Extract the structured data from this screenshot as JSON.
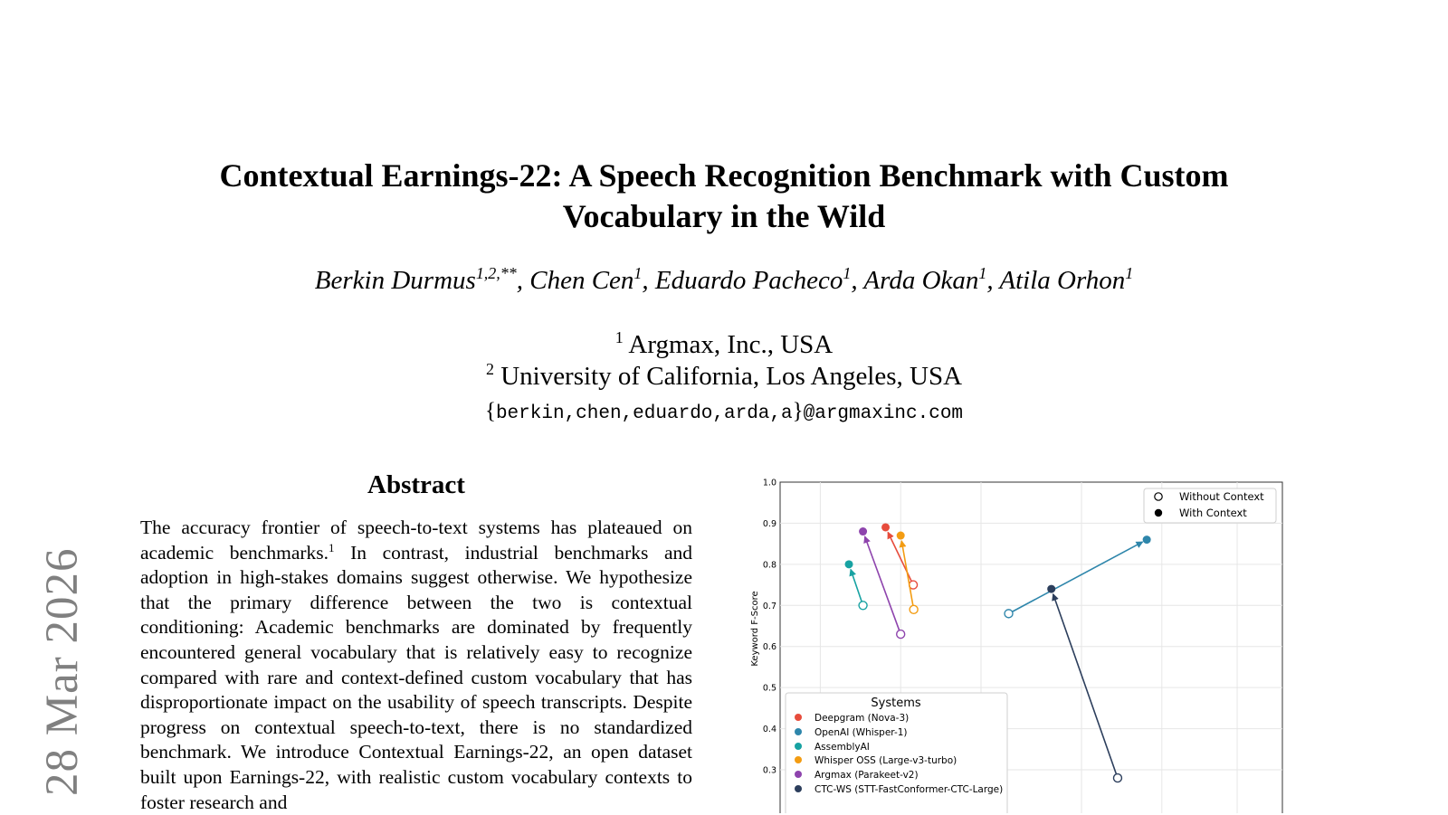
{
  "paper": {
    "title": "Contextual Earnings-22: A Speech Recognition Benchmark with Custom Vocabulary in the Wild",
    "authors": [
      {
        "name": "Berkin Durmus",
        "sup": "1,2,**"
      },
      {
        "name": "Chen Cen",
        "sup": "1"
      },
      {
        "name": "Eduardo Pacheco",
        "sup": "1"
      },
      {
        "name": "Arda Okan",
        "sup": "1"
      },
      {
        "name": "Atila Orhon",
        "sup": "1"
      }
    ],
    "affiliations": [
      {
        "sup": "1",
        "text": "Argmax, Inc., USA"
      },
      {
        "sup": "2",
        "text": "University of California, Los Angeles, USA"
      }
    ],
    "email_brace_open": "{",
    "email_users": "berkin,chen,eduardo,arda,a",
    "email_brace_close": "}",
    "email_domain": "@argmaxinc.com",
    "arxiv_stamp": "28 Mar 2026",
    "abstract_heading": "Abstract",
    "abstract_part1": "The accuracy frontier of speech-to-text systems has plateaued on academic benchmarks.",
    "abstract_footnote": "1",
    "abstract_part2": " In contrast, industrial benchmarks and adoption in high-stakes domains suggest otherwise. We hypothesize that the primary difference between the two is contextual conditioning: Academic benchmarks are dominated by frequently encountered general vocabulary that is relatively easy to recognize compared with rare and context-defined custom vocabulary that has disproportionate impact on the usability of speech transcripts. Despite progress on contextual speech-to-text, there is no standardized benchmark. We introduce Contextual Earnings-22, an open dataset built upon Earnings-22, with realistic custom vocabulary contexts to foster research and"
  },
  "chart_data": {
    "type": "scatter",
    "ylabel": "Keyword F-Score",
    "ylim": [
      0.28,
      1.0
    ],
    "xlim": [
      0.0,
      1.0
    ],
    "yticks": [
      "1.0",
      "0.9",
      "0.8",
      "0.7",
      "0.6",
      "0.5",
      "0.4",
      "0.3"
    ],
    "grid": true,
    "marker_legend": {
      "placement": "top-right",
      "items": [
        "Without Context",
        "With Context"
      ]
    },
    "systems_legend": {
      "title": "Systems",
      "placement": "bottom-left",
      "items": [
        "Deepgram (Nova-3)",
        "OpenAI (Whisper-1)",
        "AssemblyAI",
        "Whisper OSS (Large-v3-turbo)",
        "Argmax (Parakeet-v2)",
        "CTC-WS (STT-FastConformer-CTC-Large)"
      ]
    },
    "series": [
      {
        "name": "Deepgram (Nova-3)",
        "color": "#e74c3c",
        "without": {
          "x": 0.265,
          "y": 0.75
        },
        "with": {
          "x": 0.21,
          "y": 0.89
        }
      },
      {
        "name": "OpenAI (Whisper-1)",
        "color": "#2e86ab",
        "without": {
          "x": 0.455,
          "y": 0.68
        },
        "with": {
          "x": 0.73,
          "y": 0.86
        }
      },
      {
        "name": "AssemblyAI",
        "color": "#17a2a2",
        "without": {
          "x": 0.165,
          "y": 0.7
        },
        "with": {
          "x": 0.137,
          "y": 0.8
        }
      },
      {
        "name": "Whisper OSS (Large-v3-turbo)",
        "color": "#f39c12",
        "without": {
          "x": 0.266,
          "y": 0.69
        },
        "with": {
          "x": 0.24,
          "y": 0.87
        }
      },
      {
        "name": "Argmax (Parakeet-v2)",
        "color": "#8e44ad",
        "without": {
          "x": 0.24,
          "y": 0.63
        },
        "with": {
          "x": 0.165,
          "y": 0.88
        }
      },
      {
        "name": "CTC-WS (STT-FastConformer-CTC-Large)",
        "color": "#2c3e5c",
        "without": {
          "x": 0.672,
          "y": 0.28
        },
        "with": {
          "x": 0.54,
          "y": 0.74
        }
      }
    ]
  }
}
